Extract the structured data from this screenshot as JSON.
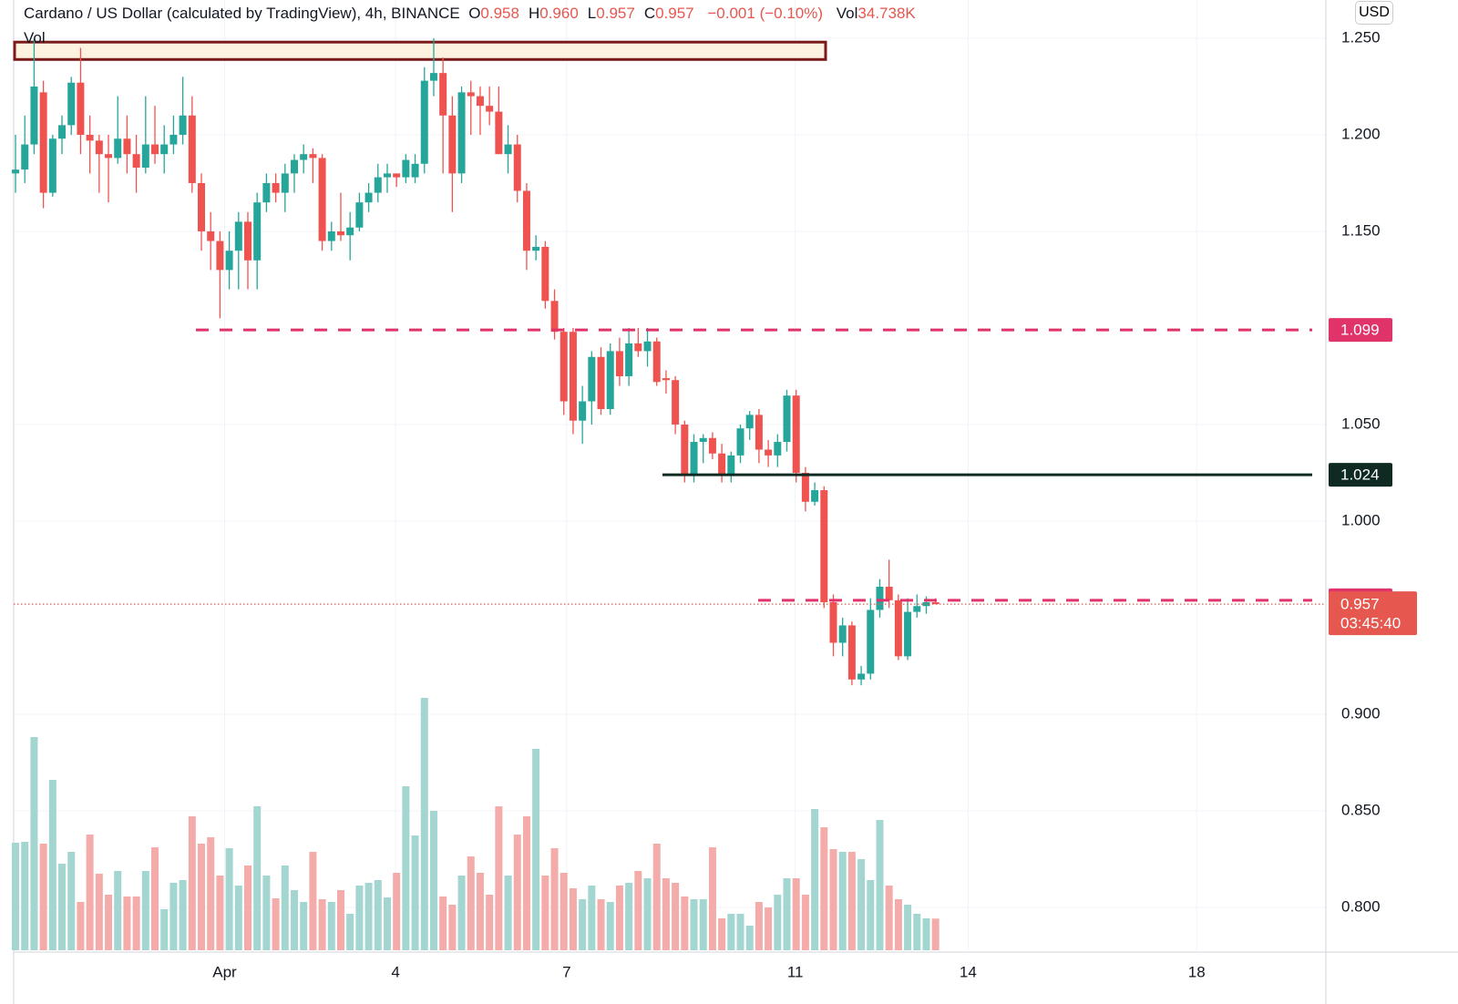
{
  "chart_data": {
    "type": "candlestick",
    "title": "Cardano / US Dollar (calculated by TradingView), 4h, BINANCE",
    "legend": [
      {
        "key": "O",
        "value": "0.958"
      },
      {
        "key": "H",
        "value": "0.960"
      },
      {
        "key": "L",
        "value": "0.957"
      },
      {
        "key": "C",
        "value": "0.957"
      }
    ],
    "change": "−0.001 (−0.10%)",
    "vol_key": "Vol",
    "vol_value": "34.738K",
    "vol_row_label": "Vol",
    "currency": "USD",
    "up_color": "#26a69a",
    "down_color": "#ef5350",
    "vol_up_color": "#a3d6d0",
    "vol_down_color": "#f3acaa",
    "open": [
      1.18,
      1.182,
      1.195,
      1.222,
      1.17,
      1.198,
      1.205,
      1.227,
      1.2,
      1.197,
      1.19,
      1.188,
      1.198,
      1.19,
      1.183,
      1.195,
      1.19,
      1.195,
      1.2,
      1.21,
      1.175,
      1.15,
      1.145,
      1.13,
      1.14,
      1.155,
      1.135,
      1.165,
      1.175,
      1.17,
      1.18,
      1.187,
      1.19,
      1.188,
      1.145,
      1.15,
      1.148,
      1.152,
      1.165,
      1.17,
      1.178,
      1.18,
      1.178,
      1.178,
      1.185,
      1.228,
      1.232,
      1.21,
      1.18,
      1.222,
      1.22,
      1.215,
      1.212,
      1.19,
      1.195,
      1.171,
      1.14,
      1.142,
      1.114,
      1.098,
      1.098,
      1.052,
      1.062,
      1.085,
      1.058,
      1.088,
      1.075,
      1.092,
      1.088,
      1.093,
      1.074,
      1.073,
      1.05,
      1.024,
      1.041,
      1.043,
      1.035,
      1.024,
      1.034,
      1.048,
      1.055,
      1.037,
      1.034,
      1.041,
      1.065,
      1.025,
      1.01,
      1.016,
      0.958,
      0.937,
      0.946,
      0.918,
      0.921,
      0.954,
      0.966,
      0.959,
      0.93,
      0.953,
      0.956,
      0.958
    ],
    "high": [
      1.2,
      1.21,
      1.25,
      1.228,
      1.2,
      1.21,
      1.23,
      1.245,
      1.21,
      1.2,
      1.2,
      1.22,
      1.21,
      1.2,
      1.22,
      1.215,
      1.205,
      1.21,
      1.23,
      1.22,
      1.18,
      1.16,
      1.15,
      1.15,
      1.16,
      1.16,
      1.17,
      1.18,
      1.18,
      1.185,
      1.19,
      1.195,
      1.193,
      1.19,
      1.155,
      1.17,
      1.16,
      1.17,
      1.175,
      1.185,
      1.185,
      1.18,
      1.19,
      1.19,
      1.235,
      1.25,
      1.24,
      1.22,
      1.225,
      1.228,
      1.225,
      1.225,
      1.225,
      1.205,
      1.2,
      1.175,
      1.148,
      1.145,
      1.12,
      1.1,
      1.1,
      1.07,
      1.088,
      1.09,
      1.092,
      1.095,
      1.1,
      1.1,
      1.1,
      1.095,
      1.078,
      1.075,
      1.052,
      1.045,
      1.045,
      1.046,
      1.04,
      1.036,
      1.05,
      1.057,
      1.058,
      1.042,
      1.045,
      1.068,
      1.068,
      1.028,
      1.02,
      1.018,
      0.962,
      0.95,
      0.948,
      0.925,
      0.96,
      0.97,
      0.98,
      0.962,
      0.96,
      0.962,
      0.961,
      0.96
    ],
    "low": [
      1.17,
      1.175,
      1.19,
      1.162,
      1.168,
      1.19,
      1.2,
      1.19,
      1.18,
      1.17,
      1.165,
      1.185,
      1.18,
      1.17,
      1.18,
      1.185,
      1.18,
      1.19,
      1.195,
      1.17,
      1.14,
      1.13,
      1.105,
      1.12,
      1.12,
      1.12,
      1.12,
      1.16,
      1.165,
      1.16,
      1.17,
      1.18,
      1.175,
      1.14,
      1.14,
      1.145,
      1.135,
      1.15,
      1.16,
      1.165,
      1.17,
      1.173,
      1.175,
      1.175,
      1.18,
      1.22,
      1.18,
      1.16,
      1.175,
      1.2,
      1.2,
      1.205,
      1.19,
      1.18,
      1.165,
      1.13,
      1.135,
      1.11,
      1.094,
      1.055,
      1.045,
      1.04,
      1.05,
      1.055,
      1.055,
      1.07,
      1.07,
      1.085,
      1.08,
      1.07,
      1.066,
      1.045,
      1.02,
      1.02,
      1.03,
      1.032,
      1.02,
      1.02,
      1.03,
      1.042,
      1.03,
      1.028,
      1.028,
      1.036,
      1.02,
      1.005,
      1.008,
      0.955,
      0.93,
      0.93,
      0.915,
      0.915,
      0.918,
      0.95,
      0.955,
      0.928,
      0.928,
      0.95,
      0.952,
      0.957
    ],
    "close": [
      1.182,
      1.195,
      1.225,
      1.17,
      1.198,
      1.205,
      1.227,
      1.2,
      1.197,
      1.19,
      1.188,
      1.198,
      1.19,
      1.183,
      1.195,
      1.19,
      1.195,
      1.2,
      1.21,
      1.175,
      1.15,
      1.145,
      1.13,
      1.14,
      1.155,
      1.135,
      1.165,
      1.175,
      1.17,
      1.18,
      1.187,
      1.19,
      1.188,
      1.145,
      1.15,
      1.148,
      1.152,
      1.165,
      1.17,
      1.178,
      1.18,
      1.178,
      1.187,
      1.185,
      1.228,
      1.232,
      1.21,
      1.18,
      1.222,
      1.22,
      1.215,
      1.212,
      1.19,
      1.195,
      1.171,
      1.14,
      1.142,
      1.114,
      1.098,
      1.062,
      1.052,
      1.062,
      1.085,
      1.058,
      1.088,
      1.075,
      1.092,
      1.088,
      1.093,
      1.072,
      1.073,
      1.05,
      1.024,
      1.041,
      1.043,
      1.035,
      1.024,
      1.034,
      1.048,
      1.055,
      1.037,
      1.034,
      1.041,
      1.065,
      1.025,
      1.01,
      1.016,
      0.958,
      0.937,
      0.946,
      0.918,
      0.921,
      0.954,
      0.966,
      0.959,
      0.93,
      0.953,
      0.956,
      0.958,
      0.957
    ],
    "volume": [
      118,
      119,
      234,
      117,
      187,
      95,
      108,
      53,
      127,
      84,
      61,
      87,
      59,
      59,
      87,
      113,
      45,
      74,
      77,
      147,
      117,
      124,
      82,
      112,
      71,
      93,
      158,
      82,
      57,
      93,
      66,
      53,
      108,
      56,
      53,
      66,
      40,
      71,
      74,
      77,
      58,
      85,
      180,
      126,
      277,
      153,
      59,
      50,
      82,
      103,
      85,
      61,
      158,
      82,
      127,
      147,
      221,
      82,
      112,
      85,
      68,
      56,
      71,
      56,
      53,
      71,
      74,
      87,
      79,
      117,
      79,
      74,
      59,
      56,
      56,
      113,
      35,
      40,
      40,
      27,
      53,
      47,
      61,
      79,
      79,
      61,
      155,
      135,
      111,
      108,
      108,
      100,
      77,
      143,
      71,
      56,
      50,
      40,
      35,
      34.738
    ],
    "xlim": [
      -0.2,
      141
    ],
    "xticks": [
      {
        "value": 22.5,
        "label": "Apr"
      },
      {
        "value": 40.9,
        "label": "4"
      },
      {
        "value": 59.3,
        "label": "7"
      },
      {
        "value": 83.9,
        "label": "11"
      },
      {
        "value": 102.5,
        "label": "14"
      },
      {
        "value": 127.1,
        "label": "18"
      }
    ],
    "ylim": [
      0.7778,
      1.2698
    ],
    "yticks": [
      {
        "value": 1.25,
        "label": "1.250"
      },
      {
        "value": 1.2,
        "label": "1.200"
      },
      {
        "value": 1.15,
        "label": "1.150"
      },
      {
        "value": 1.05,
        "label": "1.050"
      },
      {
        "value": 1.0,
        "label": "1.000"
      },
      {
        "value": 0.9,
        "label": "0.900"
      },
      {
        "value": 0.85,
        "label": "0.850"
      },
      {
        "value": 0.8,
        "label": "0.800"
      }
    ],
    "levels": [
      {
        "value": 1.099,
        "color": "#e0336a",
        "style": "dashed"
      },
      {
        "value": 1.024,
        "color": "#0f2a22",
        "style": "solid"
      },
      {
        "value": 0.959,
        "color": "#e0336a",
        "style": "dashed"
      }
    ],
    "last_price": 0.957,
    "countdown": "03:45:40",
    "last_color": "#e5574f",
    "zones": [
      {
        "top": 1.248,
        "bottom": 1.239,
        "color": "#7a1a1a",
        "fill": "#fdf1e0"
      }
    ]
  }
}
